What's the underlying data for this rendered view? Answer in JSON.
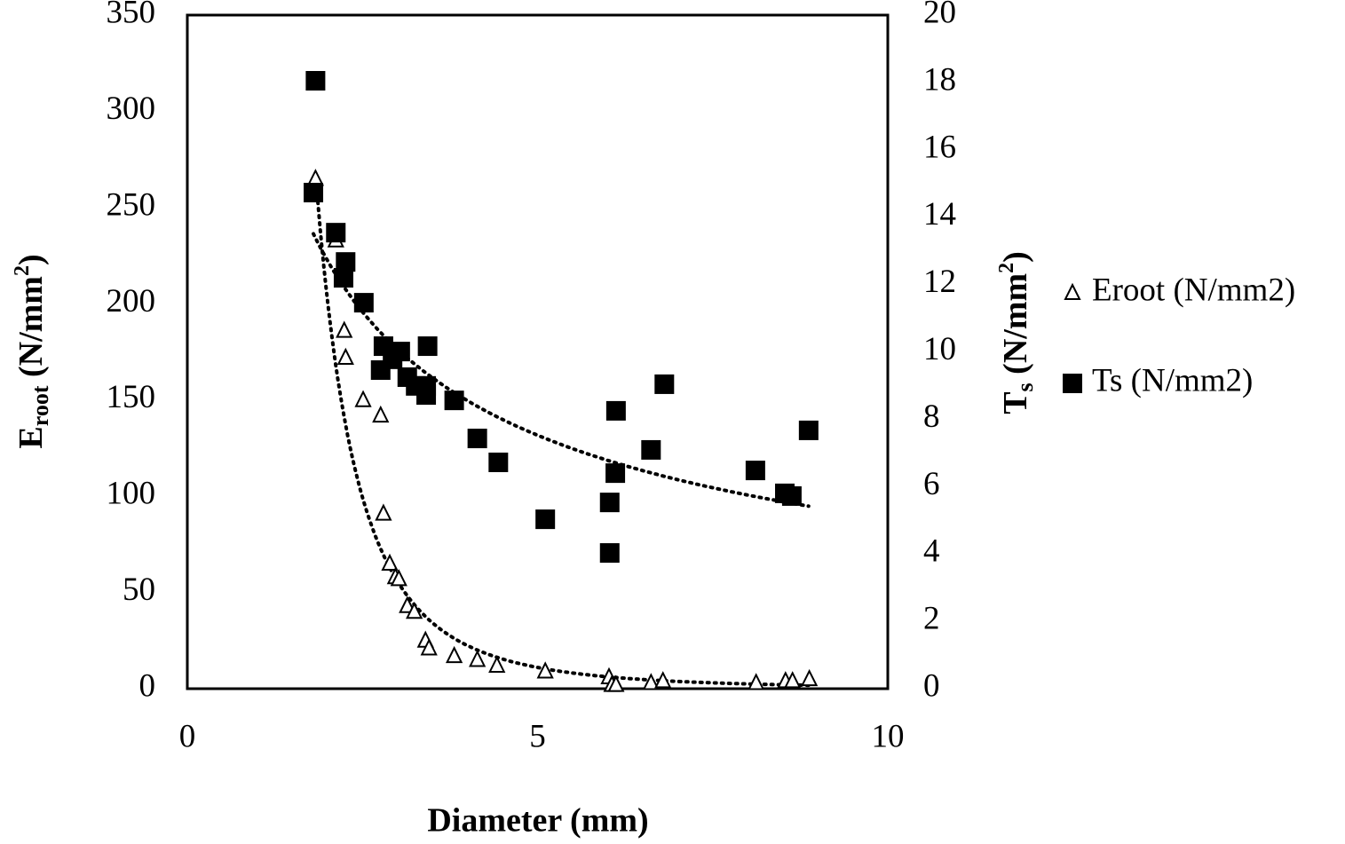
{
  "chart_data": {
    "type": "scatter",
    "xlabel": "Diameter (mm)",
    "ylabel": {
      "main": "E",
      "sub": "root",
      "unit": " (N/mm",
      "sup": "2",
      "close": ")"
    },
    "y2label": {
      "main": "T",
      "sub": "s",
      "unit": " (N/mm",
      "sup": "2",
      "close": ")"
    },
    "xlim": [
      0,
      10
    ],
    "xticks": [
      0,
      5,
      10
    ],
    "ylim": [
      0,
      350
    ],
    "yticks": [
      0,
      50,
      100,
      150,
      200,
      250,
      300,
      350
    ],
    "y2lim": [
      0,
      20
    ],
    "y2ticks": [
      0,
      2,
      4,
      6,
      8,
      10,
      12,
      14,
      16,
      18,
      20
    ],
    "grid": false,
    "legend": "right",
    "series": [
      {
        "name": "Eroot (N/mm2)",
        "marker": "triangle",
        "filled": false,
        "color": "#000000",
        "trendline": "power",
        "x": [
          1.83,
          2.12,
          2.24,
          2.26,
          2.51,
          2.76,
          2.8,
          2.89,
          2.97,
          3.02,
          3.14,
          3.24,
          3.4,
          3.45,
          3.81,
          4.14,
          4.42,
          5.11,
          6.02,
          6.06,
          6.12,
          6.62,
          6.79,
          8.12,
          8.54,
          8.64,
          8.88
        ],
        "values": [
          265,
          233,
          186,
          172,
          150,
          142,
          91,
          65,
          58,
          57,
          43,
          40,
          25,
          21,
          17,
          15,
          12,
          9,
          6,
          2,
          2,
          3,
          4,
          3,
          4,
          4,
          5
        ]
      },
      {
        "name": "Ts (N/mm2)",
        "marker": "square",
        "filled": true,
        "color": "#000000",
        "trendline": "power",
        "axis": "y2",
        "x": [
          1.83,
          1.8,
          2.12,
          2.26,
          2.23,
          2.52,
          2.8,
          2.76,
          2.93,
          3.04,
          3.14,
          3.26,
          3.41,
          3.41,
          3.43,
          3.81,
          4.14,
          4.44,
          5.11,
          6.03,
          6.03,
          6.11,
          6.12,
          6.62,
          6.81,
          8.11,
          8.53,
          8.63,
          8.87
        ],
        "values": [
          18.05,
          14.73,
          13.54,
          12.67,
          12.2,
          11.46,
          10.17,
          9.46,
          9.78,
          10.01,
          9.25,
          8.99,
          8.72,
          8.99,
          10.17,
          8.56,
          7.43,
          6.72,
          5.03,
          5.53,
          4.03,
          6.4,
          8.25,
          7.09,
          9.04,
          6.48,
          5.8,
          5.72,
          7.67
        ]
      }
    ]
  }
}
